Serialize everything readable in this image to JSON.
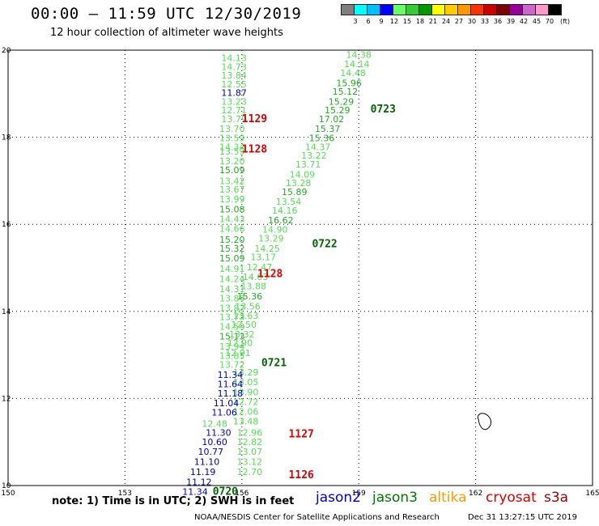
{
  "header": {
    "title": "00:00 — 11:59 UTC 12/30/2019",
    "subtitle": "12 hour collection of altimeter wave heights"
  },
  "colorbar": {
    "unit": "(ft)",
    "labels": [
      "3",
      "6",
      "9",
      "12",
      "15",
      "18",
      "21",
      "24",
      "27",
      "30",
      "33",
      "36",
      "39",
      "42",
      "45",
      "70"
    ],
    "colors": [
      "#7f7f7f",
      "#00ffff",
      "#00bfff",
      "#0000ff",
      "#66ff66",
      "#33cc33",
      "#009900",
      "#ffff00",
      "#ffcc00",
      "#ff9900",
      "#ff3300",
      "#cc0000",
      "#800000",
      "#990099",
      "#cc66cc",
      "#ff99cc",
      "#000000"
    ]
  },
  "footer": {
    "note": "note: 1) Time is in UTC; 2) SWH is in feet",
    "credit": "NOAA/NESDIS Center for Satellite Applications and Research",
    "timestamp": "Dec 31 13:27:15 UTC 2019"
  },
  "legend": [
    {
      "label": "jason2",
      "color": "#0000cc"
    },
    {
      "label": "jason3",
      "color": "#007700"
    },
    {
      "label": "altika",
      "color": "#ff9900"
    },
    {
      "label": "cryosat",
      "color": "#dd0000"
    },
    {
      "label": "s3a",
      "color": "#990000"
    }
  ],
  "chart_data": {
    "type": "scatter",
    "title": "12 hour collection of altimeter wave heights",
    "xlim": [
      150,
      165
    ],
    "ylim": [
      10,
      20
    ],
    "x_ticks": [
      "150",
      "153",
      "156",
      "159",
      "162",
      "165"
    ],
    "y_ticks": [
      "10",
      "12",
      "14",
      "16",
      "18",
      "20"
    ],
    "grid": true,
    "colors": {
      "light": "#55dd55",
      "medium": "#22aa22",
      "dark": "#006600",
      "jason2": "#0000cc",
      "cryosat": "#dd0000"
    },
    "series": [
      {
        "name": "jason3",
        "values": [
          {
            "x": 155.8,
            "y": 19.82,
            "v": "14.13",
            "c": "light"
          },
          {
            "x": 155.8,
            "y": 19.62,
            "v": "14.73",
            "c": "light"
          },
          {
            "x": 155.8,
            "y": 19.42,
            "v": "13.84",
            "c": "light"
          },
          {
            "x": 155.8,
            "y": 19.22,
            "v": "12.55",
            "c": "light"
          },
          {
            "x": 155.8,
            "y": 18.82,
            "v": "13.23",
            "c": "light"
          },
          {
            "x": 155.8,
            "y": 18.62,
            "v": "12.71",
            "c": "light"
          },
          {
            "x": 155.8,
            "y": 18.42,
            "v": "13.79",
            "c": "light"
          },
          {
            "x": 155.75,
            "y": 18.2,
            "v": "13.70",
            "c": "light"
          },
          {
            "x": 155.75,
            "y": 17.98,
            "v": "13.59",
            "c": "light"
          },
          {
            "x": 155.75,
            "y": 17.78,
            "v": "14.34",
            "c": "light"
          },
          {
            "x": 155.75,
            "y": 17.68,
            "v": "13.59",
            "c": "light"
          },
          {
            "x": 155.75,
            "y": 17.45,
            "v": "13.20",
            "c": "light"
          },
          {
            "x": 155.75,
            "y": 17.25,
            "v": "15.09",
            "c": "medium"
          },
          {
            "x": 155.75,
            "y": 17.0,
            "v": "13.42",
            "c": "light"
          },
          {
            "x": 155.75,
            "y": 16.8,
            "v": "13.67",
            "c": "light"
          },
          {
            "x": 155.75,
            "y": 16.58,
            "v": "13.99",
            "c": "light"
          },
          {
            "x": 155.75,
            "y": 16.35,
            "v": "15.08",
            "c": "medium"
          },
          {
            "x": 155.75,
            "y": 16.12,
            "v": "14.43",
            "c": "light"
          },
          {
            "x": 155.75,
            "y": 15.9,
            "v": "14.66",
            "c": "light"
          },
          {
            "x": 155.75,
            "y": 15.65,
            "v": "15.20",
            "c": "medium"
          },
          {
            "x": 155.75,
            "y": 15.45,
            "v": "15.32",
            "c": "medium"
          },
          {
            "x": 155.75,
            "y": 15.22,
            "v": "15.09",
            "c": "medium"
          },
          {
            "x": 155.75,
            "y": 14.98,
            "v": "14.91",
            "c": "light"
          },
          {
            "x": 155.75,
            "y": 14.75,
            "v": "14.24",
            "c": "light"
          },
          {
            "x": 155.75,
            "y": 14.52,
            "v": "14.31",
            "c": "light"
          },
          {
            "x": 155.75,
            "y": 14.3,
            "v": "13.89",
            "c": "light"
          },
          {
            "x": 155.75,
            "y": 14.08,
            "v": "13.82",
            "c": "light"
          },
          {
            "x": 155.75,
            "y": 13.88,
            "v": "13.73",
            "c": "light"
          },
          {
            "x": 155.75,
            "y": 13.65,
            "v": "14.59",
            "c": "light"
          },
          {
            "x": 155.75,
            "y": 13.43,
            "v": "15.13",
            "c": "medium"
          },
          {
            "x": 155.75,
            "y": 13.2,
            "v": "13.94",
            "c": "light"
          },
          {
            "x": 155.75,
            "y": 12.98,
            "v": "13.85",
            "c": "light"
          },
          {
            "x": 155.75,
            "y": 12.78,
            "v": "13.72",
            "c": "light"
          },
          {
            "x": 156.1,
            "y": 12.6,
            "v": "13.29",
            "c": "light"
          },
          {
            "x": 156.1,
            "y": 12.38,
            "v": "13.05",
            "c": "light"
          },
          {
            "x": 156.1,
            "y": 12.15,
            "v": "13.90",
            "c": "light"
          },
          {
            "x": 156.1,
            "y": 11.92,
            "v": "12.72",
            "c": "light"
          },
          {
            "x": 156.1,
            "y": 11.7,
            "v": "12.06",
            "c": "light"
          },
          {
            "x": 156.1,
            "y": 11.48,
            "v": "13.48",
            "c": "light"
          },
          {
            "x": 156.2,
            "y": 11.22,
            "v": "12.96",
            "c": "light"
          },
          {
            "x": 156.2,
            "y": 11.0,
            "v": "12.82",
            "c": "light"
          },
          {
            "x": 156.2,
            "y": 10.78,
            "v": "13.07",
            "c": "light"
          },
          {
            "x": 156.2,
            "y": 10.55,
            "v": "13.12",
            "c": "light"
          },
          {
            "x": 156.2,
            "y": 10.32,
            "v": "12.70",
            "c": "light"
          },
          {
            "x": 159.0,
            "y": 19.9,
            "v": "14.38",
            "c": "light"
          },
          {
            "x": 158.95,
            "y": 19.68,
            "v": "14.14",
            "c": "light"
          },
          {
            "x": 158.85,
            "y": 19.48,
            "v": "14.48",
            "c": "light"
          },
          {
            "x": 158.75,
            "y": 19.25,
            "v": "15.96",
            "c": "medium"
          },
          {
            "x": 158.65,
            "y": 19.05,
            "v": "15.12",
            "c": "medium"
          },
          {
            "x": 158.55,
            "y": 18.82,
            "v": "15.29",
            "c": "medium"
          },
          {
            "x": 158.45,
            "y": 18.62,
            "v": "15.29",
            "c": "medium"
          },
          {
            "x": 158.3,
            "y": 18.42,
            "v": "17.02",
            "c": "medium"
          },
          {
            "x": 158.2,
            "y": 18.2,
            "v": "15.37",
            "c": "medium"
          },
          {
            "x": 158.05,
            "y": 17.98,
            "v": "15.36",
            "c": "medium"
          },
          {
            "x": 157.95,
            "y": 17.78,
            "v": "14.37",
            "c": "light"
          },
          {
            "x": 157.85,
            "y": 17.58,
            "v": "13.22",
            "c": "light"
          },
          {
            "x": 157.7,
            "y": 17.38,
            "v": "13.71",
            "c": "light"
          },
          {
            "x": 157.55,
            "y": 17.15,
            "v": "14.09",
            "c": "light"
          },
          {
            "x": 157.45,
            "y": 16.95,
            "v": "13.28",
            "c": "light"
          },
          {
            "x": 157.35,
            "y": 16.75,
            "v": "15.89",
            "c": "medium"
          },
          {
            "x": 157.2,
            "y": 16.52,
            "v": "13.54",
            "c": "light"
          },
          {
            "x": 157.1,
            "y": 16.32,
            "v": "14.16",
            "c": "light"
          },
          {
            "x": 157.0,
            "y": 16.1,
            "v": "16.62",
            "c": "medium"
          },
          {
            "x": 156.85,
            "y": 15.88,
            "v": "14.90",
            "c": "light"
          },
          {
            "x": 156.75,
            "y": 15.68,
            "v": "13.29",
            "c": "light"
          },
          {
            "x": 156.65,
            "y": 15.45,
            "v": "14.25",
            "c": "light"
          },
          {
            "x": 156.55,
            "y": 15.25,
            "v": "13.17",
            "c": "light"
          },
          {
            "x": 156.45,
            "y": 15.02,
            "v": "12.47",
            "c": "light"
          },
          {
            "x": 156.35,
            "y": 14.8,
            "v": "14.03",
            "c": "light"
          },
          {
            "x": 156.3,
            "y": 14.58,
            "v": "13.88",
            "c": "light"
          },
          {
            "x": 156.2,
            "y": 14.35,
            "v": "15.36",
            "c": "medium"
          },
          {
            "x": 156.15,
            "y": 14.12,
            "v": "13.56",
            "c": "light"
          },
          {
            "x": 156.1,
            "y": 13.9,
            "v": "13.63",
            "c": "light"
          },
          {
            "x": 156.05,
            "y": 13.7,
            "v": "12.50",
            "c": "light"
          },
          {
            "x": 156.0,
            "y": 13.48,
            "v": "13.32",
            "c": "light"
          },
          {
            "x": 155.95,
            "y": 13.28,
            "v": "12.90",
            "c": "light"
          },
          {
            "x": 155.9,
            "y": 13.05,
            "v": "12.91",
            "c": "light"
          }
        ]
      },
      {
        "name": "jason2",
        "values": [
          {
            "x": 155.8,
            "y": 19.02,
            "v": "11.87",
            "c": "jason2"
          },
          {
            "x": 155.7,
            "y": 12.55,
            "v": "11.34",
            "c": "jason2"
          },
          {
            "x": 155.7,
            "y": 12.33,
            "v": "11.64",
            "c": "jason2"
          },
          {
            "x": 155.7,
            "y": 12.12,
            "v": "11.18",
            "c": "jason2"
          },
          {
            "x": 155.6,
            "y": 11.9,
            "v": "11.04",
            "c": "jason2"
          },
          {
            "x": 155.55,
            "y": 11.68,
            "v": "11.06",
            "c": "jason2"
          },
          {
            "x": 155.4,
            "y": 11.22,
            "v": "11.30",
            "c": "jason2"
          },
          {
            "x": 155.3,
            "y": 11.0,
            "v": "10.60",
            "c": "jason2"
          },
          {
            "x": 155.2,
            "y": 10.78,
            "v": "10.77",
            "c": "jason2"
          },
          {
            "x": 155.1,
            "y": 10.55,
            "v": "11.10",
            "c": "jason2"
          },
          {
            "x": 155.0,
            "y": 10.32,
            "v": "11.19",
            "c": "jason2"
          },
          {
            "x": 154.9,
            "y": 10.08,
            "v": "11.12",
            "c": "jason2"
          },
          {
            "x": 154.8,
            "y": 9.86,
            "v": "11.34",
            "c": "jason2"
          }
        ]
      },
      {
        "name": "jason3",
        "values": [
          {
            "x": 155.3,
            "y": 11.42,
            "v": "12.48",
            "c": "light"
          }
        ]
      },
      {
        "name": "cryosat",
        "values": [
          {
            "x": 156.0,
            "y": 18.42,
            "v": "1129",
            "c": "cryosat"
          },
          {
            "x": 156.0,
            "y": 17.72,
            "v": "1128",
            "c": "cryosat"
          },
          {
            "x": 156.4,
            "y": 14.86,
            "v": "1128",
            "c": "cryosat"
          },
          {
            "x": 157.2,
            "y": 11.18,
            "v": "1127",
            "c": "cryosat"
          },
          {
            "x": 157.2,
            "y": 10.24,
            "v": "1126",
            "c": "cryosat"
          }
        ]
      },
      {
        "name": "jason3",
        "values": [
          {
            "x": 159.3,
            "y": 18.64,
            "v": "0723",
            "c": "dark"
          },
          {
            "x": 157.8,
            "y": 15.55,
            "v": "0722",
            "c": "dark"
          },
          {
            "x": 156.5,
            "y": 12.82,
            "v": "0721",
            "c": "dark"
          },
          {
            "x": 155.25,
            "y": 9.86,
            "v": "0720",
            "c": "dark"
          }
        ]
      }
    ]
  }
}
